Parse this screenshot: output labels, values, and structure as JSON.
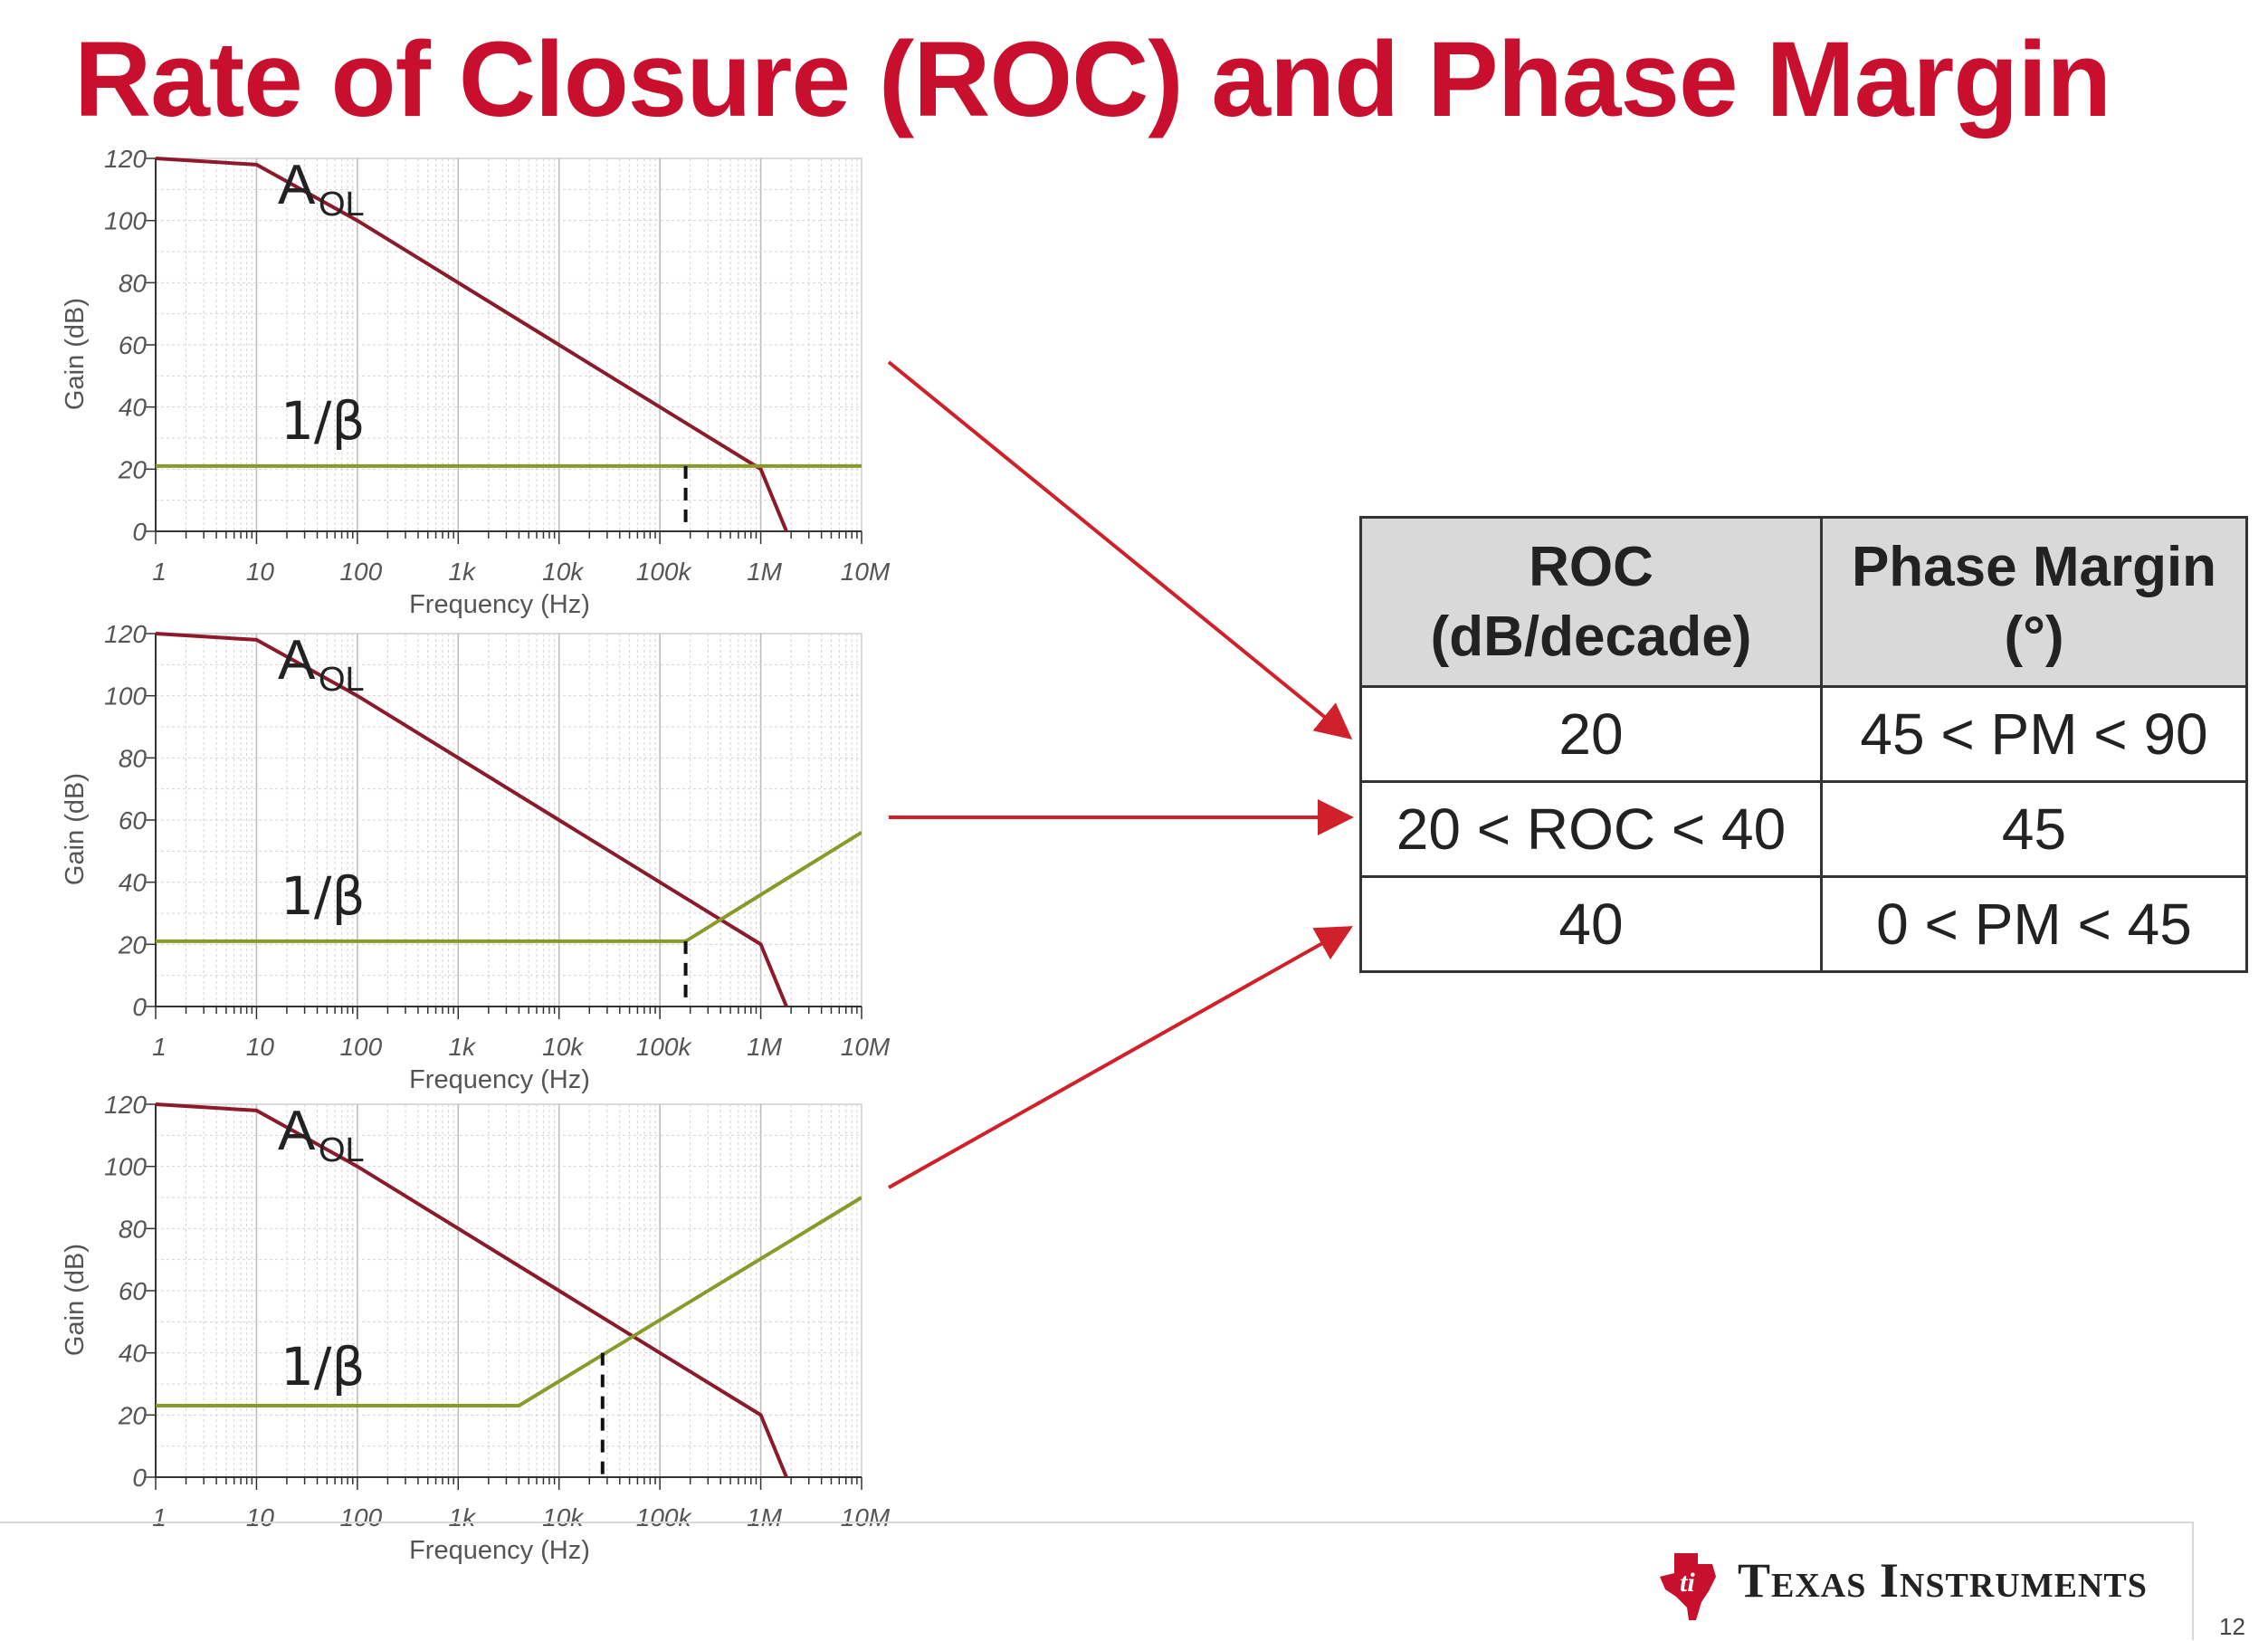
{
  "title": "Rate of Closure (ROC) and Phase Margin",
  "colors": {
    "title": "#c8102e",
    "aol_line": "#8b1a2b",
    "beta_line": "#8a9a2a",
    "arrow": "#d0202a",
    "grid": "#d4d4d4",
    "table_header_bg": "#d9d9d9"
  },
  "chart_data": [
    {
      "type": "line",
      "xlabel": "Frequency (Hz)",
      "ylabel": "Gain (dB)",
      "x_scale": "log",
      "xlim": [
        1,
        10000000
      ],
      "ylim": [
        0,
        120
      ],
      "x_ticks": [
        "1",
        "10",
        "100",
        "1k",
        "10k",
        "100k",
        "1M",
        "10M"
      ],
      "y_ticks": [
        "0",
        "20",
        "40",
        "60",
        "80",
        "100",
        "120"
      ],
      "grid": true,
      "series": [
        {
          "name": "AOL",
          "label_main": "A",
          "label_sub": "OL",
          "points": [
            [
              1,
              120
            ],
            [
              10,
              118
            ],
            [
              100,
              100
            ],
            [
              1000,
              80
            ],
            [
              10000,
              60
            ],
            [
              100000,
              40
            ],
            [
              1000000,
              20
            ],
            [
              1800000,
              0
            ]
          ]
        },
        {
          "name": "1/β",
          "points": [
            [
              1,
              21
            ],
            [
              10000000,
              21
            ]
          ]
        }
      ],
      "intersection": [
        180000,
        21
      ]
    },
    {
      "type": "line",
      "xlabel": "Frequency (Hz)",
      "ylabel": "Gain (dB)",
      "x_scale": "log",
      "xlim": [
        1,
        10000000
      ],
      "ylim": [
        0,
        120
      ],
      "x_ticks": [
        "1",
        "10",
        "100",
        "1k",
        "10k",
        "100k",
        "1M",
        "10M"
      ],
      "y_ticks": [
        "0",
        "20",
        "40",
        "60",
        "80",
        "100",
        "120"
      ],
      "grid": true,
      "series": [
        {
          "name": "AOL",
          "label_main": "A",
          "label_sub": "OL",
          "points": [
            [
              1,
              120
            ],
            [
              10,
              118
            ],
            [
              100,
              100
            ],
            [
              1000,
              80
            ],
            [
              10000,
              60
            ],
            [
              100000,
              40
            ],
            [
              1000000,
              20
            ],
            [
              1800000,
              0
            ]
          ]
        },
        {
          "name": "1/β",
          "points": [
            [
              1,
              21
            ],
            [
              180000,
              21
            ],
            [
              10000000,
              56
            ]
          ]
        }
      ],
      "intersection": [
        180000,
        21
      ]
    },
    {
      "type": "line",
      "xlabel": "Frequency (Hz)",
      "ylabel": "Gain (dB)",
      "x_scale": "log",
      "xlim": [
        1,
        10000000
      ],
      "ylim": [
        0,
        120
      ],
      "x_ticks": [
        "1",
        "10",
        "100",
        "1k",
        "10k",
        "100k",
        "1M",
        "10M"
      ],
      "y_ticks": [
        "0",
        "20",
        "40",
        "60",
        "80",
        "100",
        "120"
      ],
      "grid": true,
      "series": [
        {
          "name": "AOL",
          "label_main": "A",
          "label_sub": "OL",
          "points": [
            [
              1,
              120
            ],
            [
              10,
              118
            ],
            [
              100,
              100
            ],
            [
              1000,
              80
            ],
            [
              10000,
              60
            ],
            [
              100000,
              40
            ],
            [
              1000000,
              20
            ],
            [
              1800000,
              0
            ]
          ]
        },
        {
          "name": "1/β",
          "points": [
            [
              1,
              23
            ],
            [
              4000,
              23
            ],
            [
              10000000,
              90
            ]
          ]
        }
      ],
      "intersection": [
        27000,
        40
      ]
    }
  ],
  "table": {
    "headers": [
      {
        "line1": "ROC",
        "line2": "(dB/decade)"
      },
      {
        "line1": "Phase Margin",
        "line2": "(°)"
      }
    ],
    "rows": [
      [
        "20",
        "45 < PM < 90"
      ],
      [
        "20 < ROC < 40",
        "45"
      ],
      [
        "40",
        "0 < PM < 45"
      ]
    ]
  },
  "footer": {
    "logo_text": "Texas Instruments",
    "page_number": "12"
  }
}
